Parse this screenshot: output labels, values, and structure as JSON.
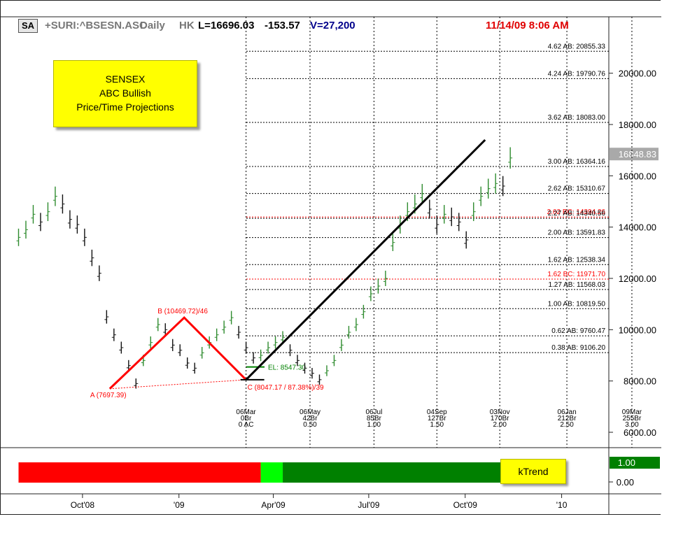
{
  "header": {
    "symbol_badge": "SA",
    "symbol": "+SURI:^BSESN.ASC",
    "period": "Daily",
    "exchange": "HK",
    "last": "L=16696.03",
    "change": "-153.57",
    "volume": "V=27,200",
    "timestamp": "11/14/09 8:06 AM"
  },
  "annotation_box": {
    "lines": [
      "SENSEX",
      "ABC Bullish",
      "Price/Time Projections"
    ]
  },
  "indicator": {
    "label": "kTrend",
    "value": "1.00",
    "zero": "0.00",
    "segments": [
      {
        "from": "2008-08-01",
        "to": "2009-03-20",
        "color": "#ff0000"
      },
      {
        "from": "2009-03-20",
        "to": "2009-04-10",
        "color": "#00ff00"
      },
      {
        "from": "2009-04-10",
        "to": "2009-11-13",
        "color": "#008000"
      }
    ]
  },
  "chart_data": {
    "type": "line",
    "title": "",
    "y_axis": {
      "side": "right",
      "range": [
        5400,
        22200
      ],
      "tick_labels": [
        "6000.00",
        "8000.00",
        "10000.00",
        "12000.00",
        "14000.00",
        "16000.00",
        "18000.00",
        "20000.00"
      ],
      "tick_values": [
        6000,
        8000,
        10000,
        12000,
        14000,
        16000,
        18000,
        20000
      ],
      "current_price_label": "16848.83",
      "current_price": 16848.83
    },
    "x_axis": {
      "range": [
        "2008-07-31",
        "2010-02-15"
      ],
      "tick_labels": [
        "Oct'08",
        "'09",
        "Apr'09",
        "Jul'09",
        "Oct'09",
        "'10"
      ],
      "tick_dates": [
        "2008-10-01",
        "2009-01-01",
        "2009-04-01",
        "2009-07-01",
        "2009-10-01",
        "2010-01-01"
      ]
    },
    "grid": false,
    "series": [
      {
        "style": "ohlc-bars",
        "points": [
          [
            "2008-08-01",
            13600
          ],
          [
            "2008-08-08",
            13900
          ],
          [
            "2008-08-15",
            14500
          ],
          [
            "2008-08-22",
            14200
          ],
          [
            "2008-08-29",
            14600
          ],
          [
            "2008-09-05",
            15200
          ],
          [
            "2008-09-12",
            14900
          ],
          [
            "2008-09-19",
            14300
          ],
          [
            "2008-09-26",
            14100
          ],
          [
            "2008-10-03",
            13600
          ],
          [
            "2008-10-10",
            12800
          ],
          [
            "2008-10-17",
            12200
          ],
          [
            "2008-10-24",
            10500
          ],
          [
            "2008-10-31",
            9800
          ],
          [
            "2008-11-07",
            9300
          ],
          [
            "2008-11-14",
            8600
          ],
          [
            "2008-11-21",
            7900
          ],
          [
            "2008-11-28",
            8800
          ],
          [
            "2008-12-05",
            9500
          ],
          [
            "2008-12-12",
            10200
          ],
          [
            "2008-12-19",
            10000
          ],
          [
            "2008-12-26",
            9400
          ],
          [
            "2009-01-02",
            9200
          ],
          [
            "2009-01-09",
            8700
          ],
          [
            "2009-01-16",
            8500
          ],
          [
            "2009-01-23",
            9100
          ],
          [
            "2009-01-30",
            9500
          ],
          [
            "2009-02-06",
            9800
          ],
          [
            "2009-02-13",
            10100
          ],
          [
            "2009-02-20",
            10469
          ],
          [
            "2009-02-27",
            9900
          ],
          [
            "2009-03-06",
            9300
          ],
          [
            "2009-03-13",
            8900
          ],
          [
            "2009-03-20",
            9000
          ],
          [
            "2009-03-27",
            9300
          ],
          [
            "2009-04-03",
            9500
          ],
          [
            "2009-04-10",
            9700
          ],
          [
            "2009-04-17",
            9200
          ],
          [
            "2009-04-24",
            8800
          ],
          [
            "2009-05-01",
            8500
          ],
          [
            "2009-05-08",
            8300
          ],
          [
            "2009-05-15",
            8050
          ],
          [
            "2009-05-22",
            8400
          ],
          [
            "2009-05-29",
            8800
          ],
          [
            "2009-06-05",
            9400
          ],
          [
            "2009-06-12",
            9900
          ],
          [
            "2009-06-19",
            10200
          ],
          [
            "2009-06-26",
            10700
          ],
          [
            "2009-07-03",
            11400
          ],
          [
            "2009-07-10",
            11700
          ],
          [
            "2009-07-17",
            12000
          ],
          [
            "2009-07-24",
            13400
          ],
          [
            "2009-07-31",
            14100
          ],
          [
            "2009-08-07",
            14600
          ],
          [
            "2009-08-14",
            14900
          ],
          [
            "2009-08-21",
            15300
          ],
          [
            "2009-08-28",
            14700
          ],
          [
            "2009-09-04",
            14100
          ],
          [
            "2009-09-11",
            14500
          ],
          [
            "2009-09-18",
            14400
          ],
          [
            "2009-09-25",
            14200
          ],
          [
            "2009-10-02",
            13500
          ],
          [
            "2009-10-09",
            14600
          ],
          [
            "2009-10-16",
            15200
          ],
          [
            "2009-10-23",
            15500
          ],
          [
            "2009-10-30",
            15700
          ],
          [
            "2009-11-06",
            15600
          ],
          [
            "2009-11-13",
            16696
          ]
        ]
      }
    ],
    "abc_pattern": {
      "color": "#ff0000",
      "A": {
        "date": "2008-10-27",
        "price": 7697.39,
        "label": "A (7697.39)"
      },
      "B": {
        "date": "2009-01-06",
        "price": 10469.72,
        "label": "B (10469.72)/46"
      },
      "C": {
        "date": "2009-03-06",
        "price": 8047.17,
        "label": "C (8047.17 / 87.38%)/39"
      }
    },
    "trend_line": {
      "from_date": "2009-03-06",
      "from_price": 8047.17,
      "to_date": "2009-10-20",
      "to_price": 17400,
      "color": "#000000"
    },
    "entry_line": {
      "label": "EL: 8547.30",
      "price": 8547.3,
      "color": "#008000"
    },
    "projection_levels": [
      {
        "label": "4.62 AB: 20855.33",
        "price": 20855.33,
        "color": "#000000"
      },
      {
        "label": "4.24 AB: 19790.76",
        "price": 19790.76,
        "color": "#000000"
      },
      {
        "label": "3.62 AB: 18083.00",
        "price": 18083.0,
        "color": "#000000"
      },
      {
        "label": "3.00 AB: 16364.16",
        "price": 16364.16,
        "color": "#000000"
      },
      {
        "label": "2.62 AB: 15310.67",
        "price": 15310.67,
        "color": "#000000"
      },
      {
        "label": "2.62 BC: 14394.26",
        "price": 14394.26,
        "color": "#ff0000"
      },
      {
        "label": "2.27 AB: 14340.56",
        "price": 14340.56,
        "color": "#000000"
      },
      {
        "label": "2.00 AB: 13591.83",
        "price": 13591.83,
        "color": "#000000"
      },
      {
        "label": "1.62 AB: 12538.34",
        "price": 12538.34,
        "color": "#000000"
      },
      {
        "label": "1.62 BC: 11971.70",
        "price": 11971.7,
        "color": "#ff0000"
      },
      {
        "label": "1.27 AB: 11568.03",
        "price": 11568.03,
        "color": "#000000"
      },
      {
        "label": "1.00 AB: 10819.50",
        "price": 10819.5,
        "color": "#000000"
      },
      {
        "label": "0.62 AB: 9760.47",
        "price": 9760.47,
        "color": "#000000"
      },
      {
        "label": "0.38 AB: 9106.20",
        "price": 9106.2,
        "color": "#000000"
      }
    ],
    "time_projections": [
      {
        "date": "2009-03-06",
        "lines": [
          "06Mar",
          "0Br",
          "0 AC"
        ]
      },
      {
        "date": "2009-05-06",
        "lines": [
          "06May",
          "42Br",
          "0.50"
        ]
      },
      {
        "date": "2009-07-06",
        "lines": [
          "06Jul",
          "85Br",
          "1.00"
        ]
      },
      {
        "date": "2009-09-04",
        "lines": [
          "04Sep",
          "127Br",
          "1.50"
        ]
      },
      {
        "date": "2009-11-03",
        "lines": [
          "03Nov",
          "170Br",
          "2.00"
        ]
      },
      {
        "date": "2010-01-06",
        "lines": [
          "06Jan",
          "212Br",
          "2.50"
        ]
      },
      {
        "date": "2010-03-09",
        "lines": [
          "09Mar",
          "255Br",
          "3.00"
        ]
      }
    ]
  }
}
